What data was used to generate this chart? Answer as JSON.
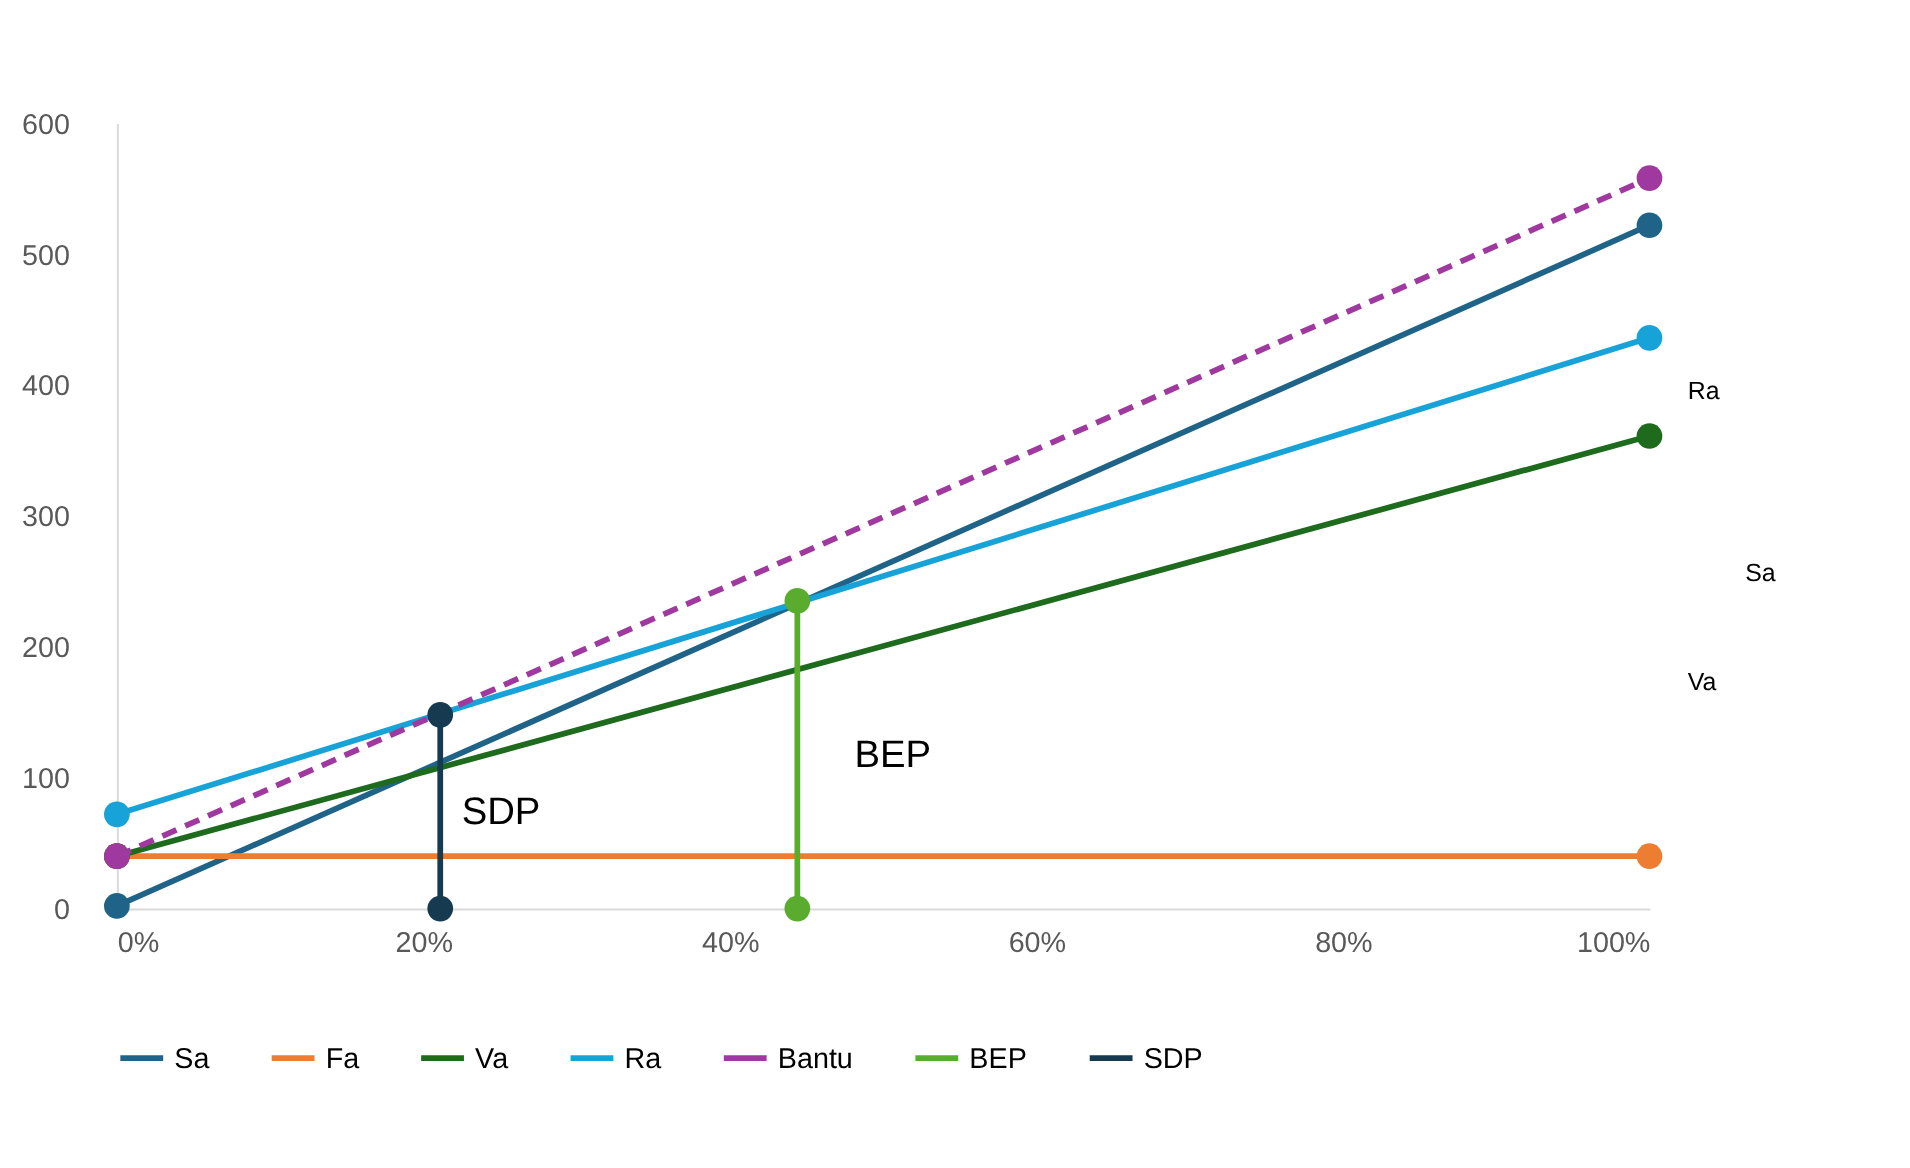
{
  "chart_data": {
    "type": "line",
    "xlim": [
      0,
      100
    ],
    "ylim": [
      0,
      600
    ],
    "xticks": [
      {
        "value": 0,
        "label": "0%"
      },
      {
        "value": 20,
        "label": "20%"
      },
      {
        "value": 40,
        "label": "40%"
      },
      {
        "value": 60,
        "label": "60%"
      },
      {
        "value": 80,
        "label": "80%"
      },
      {
        "value": 100,
        "label": "100%"
      }
    ],
    "yticks": [
      0,
      100,
      200,
      300,
      400,
      500,
      600
    ],
    "grid": false,
    "legend": "bottom",
    "marker": "circle",
    "series": [
      {
        "name": "Sa",
        "color": "#1f6488",
        "x": [
          0,
          100
        ],
        "values": [
          2,
          522
        ]
      },
      {
        "name": "Fa",
        "color": "#ed7d31",
        "x": [
          0,
          100
        ],
        "values": [
          40,
          40
        ]
      },
      {
        "name": "Va",
        "color": "#1e6b1e",
        "x": [
          0,
          100
        ],
        "values": [
          40,
          361
        ]
      },
      {
        "name": "Ra",
        "color": "#17a2d8",
        "x": [
          0,
          100
        ],
        "values": [
          72,
          436
        ]
      },
      {
        "name": "Bantu",
        "color": "#a0399f",
        "x": [
          0,
          100
        ],
        "values": [
          40,
          558
        ],
        "line_style": "dashed"
      },
      {
        "name": "BEP",
        "color": "#5aac2e",
        "x": [
          44.4,
          44.4
        ],
        "values": [
          0,
          235
        ]
      },
      {
        "name": "SDP",
        "color": "#163a4f",
        "x": [
          21.1,
          21.1
        ],
        "values": [
          0,
          148
        ]
      }
    ],
    "annotations": [
      "BEP",
      "SDP",
      "Ra",
      "Sa",
      "Va"
    ]
  }
}
